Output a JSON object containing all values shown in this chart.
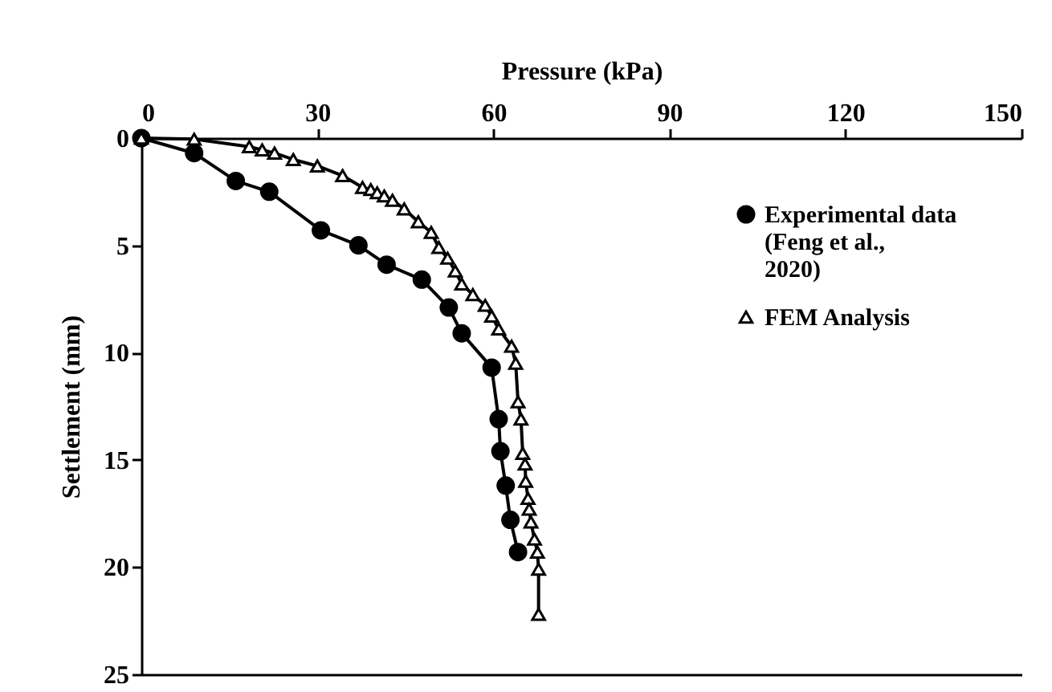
{
  "chart_data": {
    "type": "line",
    "xlabel": "Pressure (kPa)",
    "ylabel": "Settlement (mm)",
    "xlim": [
      0,
      150
    ],
    "xticks": [
      0,
      30,
      60,
      90,
      120,
      150
    ],
    "ylim": [
      25,
      0
    ],
    "yticks": [
      0,
      5,
      10,
      15,
      20,
      25
    ],
    "grid": false,
    "legend": "top right",
    "line_style": "solid",
    "series": [
      {
        "name": "Experimental data (Feng et al., 2020)",
        "color": "#000000",
        "marker": "circle",
        "x": [
          0,
          9.0,
          16.1,
          21.8,
          30.6,
          37.0,
          41.8,
          47.8,
          52.4,
          54.6,
          59.7,
          60.9,
          61.2,
          62.1,
          62.9,
          64.2
        ],
        "values": [
          0,
          0.7,
          2.0,
          2.5,
          4.3,
          5.0,
          5.9,
          6.6,
          7.9,
          9.1,
          10.7,
          13.1,
          14.6,
          16.2,
          17.8,
          19.3
        ]
      },
      {
        "name": "FEM Analysis",
        "color": "#000000",
        "marker": "triangle",
        "x": [
          0,
          9.0,
          18.4,
          20.6,
          22.7,
          25.9,
          30.0,
          34.3,
          37.7,
          39.1,
          40.2,
          41.4,
          42.8,
          44.8,
          47.2,
          49.4,
          50.7,
          52.2,
          53.5,
          54.6,
          56.5,
          58.6,
          59.7,
          60.9,
          63.1,
          63.8,
          64.2,
          64.7,
          65.0,
          65.4,
          65.5,
          65.9,
          66.1,
          66.4,
          67.0,
          67.5,
          67.7,
          67.7
        ],
        "values": [
          0,
          0.05,
          0.4,
          0.55,
          0.7,
          1.0,
          1.3,
          1.75,
          2.3,
          2.4,
          2.55,
          2.7,
          2.9,
          3.3,
          3.9,
          4.4,
          5.1,
          5.6,
          6.2,
          6.8,
          7.3,
          7.8,
          8.3,
          8.9,
          9.7,
          10.5,
          12.3,
          13.1,
          14.7,
          15.2,
          16.0,
          16.8,
          17.3,
          17.9,
          18.7,
          19.3,
          20.1,
          22.2
        ]
      }
    ]
  }
}
